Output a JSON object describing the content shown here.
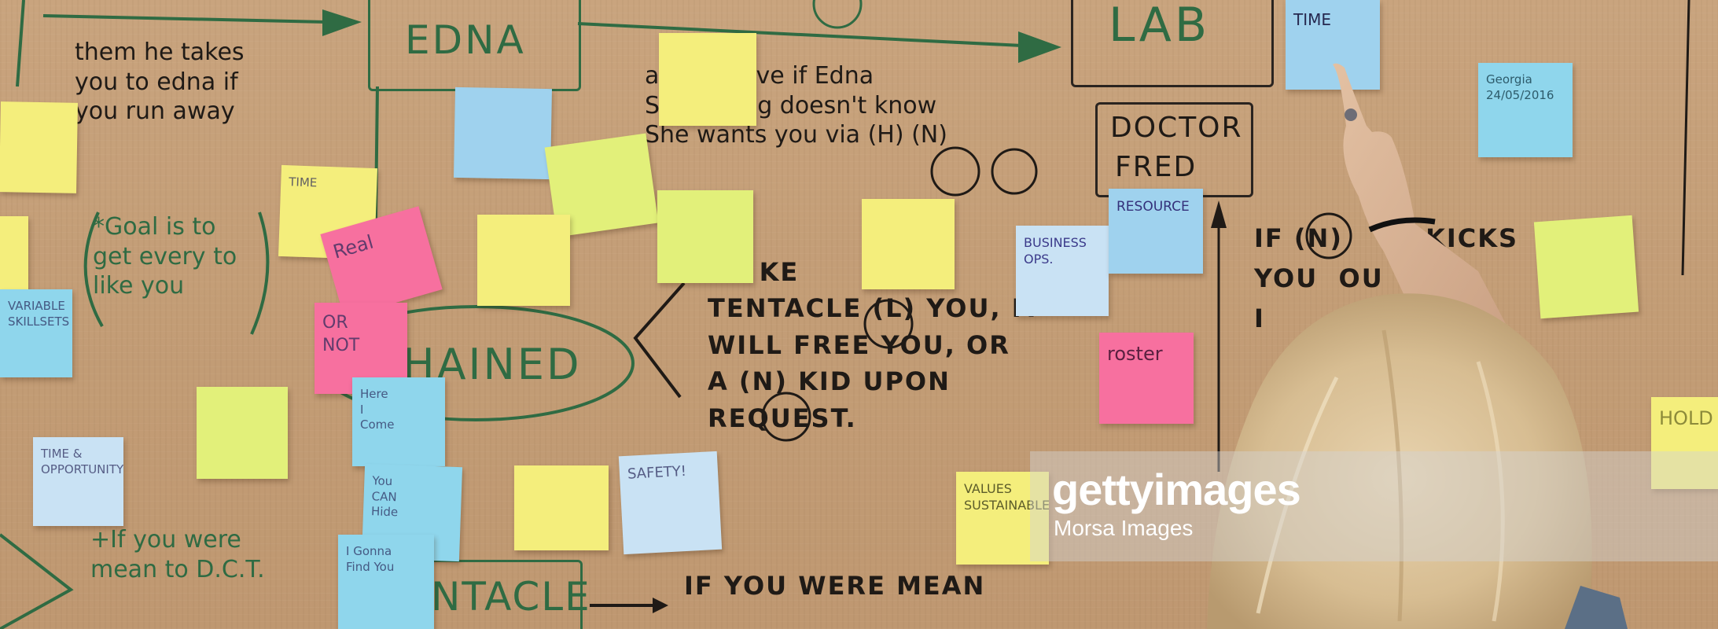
{
  "handwriting": {
    "green_box_top": "EDNA",
    "lab_box": "LAB",
    "doctor_box_line1": "DOCTOR",
    "doctor_box_line2": "FRED",
    "chained": "HAINED",
    "tentacle_box": "NTACLE",
    "left_note_1": "them he takes\nyou to edna if\nyou run away",
    "goal": "*Goal is to\nget every to\nlike you",
    "mean_dct": "+If you were\nmean to D.C.T.",
    "edna_line": "a      u have if Edna\nSomething doesn't know\nShe wants you via (H) (N)",
    "tentacle_text": "ED KE         IF\nTENTACLE (L) YOU, IT\nWILL FREE YOU, OR\nA (N) KID UPON\nREQUEST.",
    "if_mean": "IF YOU WERE MEAN",
    "kicks": "IF (N)        KICKS\nYOU  OU\nI               S"
  },
  "notes": {
    "time": "TIME",
    "resource": "RESOURCE",
    "business_ops": "BUSINESS\nOPS.",
    "roster": "roster",
    "values": "VALUES\nSUSTAINABLE",
    "safety": "SAFETY!",
    "real": "Real",
    "or_not": "OR\nNOT",
    "here_i_come": "Here\nI\nCome",
    "you_can_hide": "You\nCAN\nHide",
    "i_gonna": "I Gonna\nFind You",
    "time_opportunity": "TIME &\nOPPORTUNITY",
    "time_small": "TIME",
    "variable_skills": "VARIABLE\nSKILLSETS",
    "date_note": "Georgia\n24/05/2016",
    "hold": "HOLD"
  },
  "watermark": {
    "brand": "gettyimages",
    "credit": "Morsa Images"
  },
  "colors": {
    "paper": "#c49f7a",
    "yellow": "#f4ee7c",
    "pink": "#f7709f",
    "blue": "#9fd2ee",
    "marker_green": "#2f6b43",
    "marker_black": "#1f1a16"
  }
}
